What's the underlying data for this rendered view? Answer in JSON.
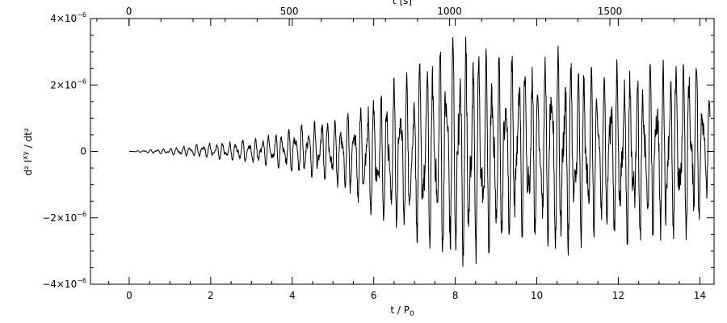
{
  "chart_data": {
    "type": "line",
    "title": "",
    "xlabel": "t / P",
    "xlabel_sub": "0",
    "ylabel": "d² I",
    "ylabel_sup": "xy",
    "ylabel_tail": " / dt²",
    "x2label": "t [s]",
    "xlim": [
      -0.95,
      14.35
    ],
    "ylim": [
      -4e-06,
      4e-06
    ],
    "x2lim": [
      -120,
      1825
    ],
    "xticks": [
      0,
      2,
      4,
      6,
      8,
      10,
      12,
      14
    ],
    "xtick_labels": [
      "0",
      "2",
      "4",
      "6",
      "8",
      "10",
      "12",
      "14"
    ],
    "x2ticks": [
      0,
      500,
      1000,
      1500
    ],
    "x2tick_labels": [
      "0",
      "500",
      "1000",
      "1500"
    ],
    "yticks": [
      -4e-06,
      -2e-06,
      0,
      2e-06,
      4e-06
    ],
    "ytick_labels": [
      {
        "mantissa": "−4×10",
        "exp": "−6"
      },
      {
        "mantissa": "−2×10",
        "exp": "−6"
      },
      {
        "mantissa": "0",
        "exp": ""
      },
      {
        "mantissa": "2×10",
        "exp": "−6"
      },
      {
        "mantissa": "4×10",
        "exp": "−6"
      }
    ],
    "grid": false,
    "line_color": "#000000",
    "series": [
      {
        "x": [
          0,
          0.5,
          1.0,
          1.5,
          2.0,
          2.5,
          3.0,
          3.5,
          4.0,
          4.5,
          5.0,
          5.5,
          6.0,
          6.5,
          7.0,
          7.5,
          8.0,
          8.5,
          9.0,
          9.5,
          10.0,
          10.5,
          11.0,
          11.5,
          12.0,
          12.5,
          13.0,
          13.5,
          14.0,
          14.25
        ],
        "upper": [
          0.0,
          5e-08,
          1e-07,
          1.8e-07,
          2.5e-07,
          3e-07,
          3.8e-07,
          5e-07,
          7e-07,
          9e-07,
          1e-06,
          1.2e-06,
          1.8e-06,
          2.2e-06,
          2.5e-06,
          3e-06,
          3.5e-06,
          3.4e-06,
          2.8e-06,
          2.9e-06,
          2.6e-06,
          3.2e-06,
          2.8e-06,
          2.4e-06,
          2.8e-06,
          2.5e-06,
          2.7e-06,
          3e-06,
          2.9e-06,
          1.4e-06
        ],
        "lower": [
          0.0,
          -5e-08,
          -1e-07,
          -1.5e-07,
          -2e-07,
          -3e-07,
          -3.5e-07,
          -4.5e-07,
          -6e-07,
          -8e-07,
          -1e-06,
          -1.4e-06,
          -2e-06,
          -2.4e-06,
          -2.7e-06,
          -3e-06,
          -3.6e-06,
          -3.4e-06,
          -3e-06,
          -2.6e-06,
          -2.5e-06,
          -3.3e-06,
          -3e-06,
          -2.5e-06,
          -2.8e-06,
          -2.8e-06,
          -2.7e-06,
          -2.8e-06,
          -2.4e-06,
          -1.2e-06
        ],
        "points": 1800,
        "x_start": 0.0,
        "x_end": 14.25
      }
    ]
  }
}
